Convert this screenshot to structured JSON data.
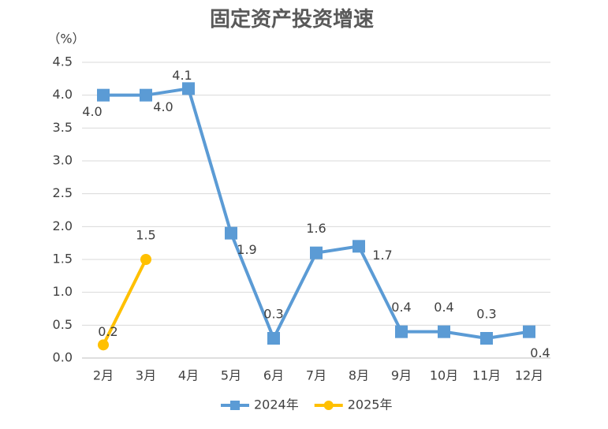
{
  "chart_data": {
    "type": "line",
    "title": "固定资产投资增速",
    "y_label": "（%）",
    "categories": [
      "2月",
      "3月",
      "4月",
      "5月",
      "6月",
      "7月",
      "8月",
      "9月",
      "10月",
      "11月",
      "12月"
    ],
    "series": [
      {
        "name": "2024年",
        "color": "#5b9bd5",
        "marker": "square",
        "values": [
          4.0,
          4.0,
          4.1,
          1.9,
          0.3,
          1.6,
          1.7,
          0.4,
          0.4,
          0.3,
          0.4
        ],
        "value_labels": [
          "4.0",
          "4.0",
          "4.1",
          "1.9",
          "0.3",
          "1.6",
          "1.7",
          "0.4",
          "0.4",
          "0.3",
          "0.4"
        ]
      },
      {
        "name": "2025年",
        "color": "#ffc000",
        "marker": "circle",
        "values": [
          0.2,
          1.5,
          null,
          null,
          null,
          null,
          null,
          null,
          null,
          null,
          null
        ],
        "value_labels": [
          "0.2",
          "1.5",
          null,
          null,
          null,
          null,
          null,
          null,
          null,
          null,
          null
        ]
      }
    ],
    "ylim": [
      0,
      4.5
    ],
    "yticks": [
      {
        "value": 0,
        "label": "0.0"
      },
      {
        "value": 0.5,
        "label": "0.5"
      },
      {
        "value": 1,
        "label": "1.0"
      },
      {
        "value": 1.5,
        "label": "1.5"
      },
      {
        "value": 2,
        "label": "2.0"
      },
      {
        "value": 2.5,
        "label": "2.5"
      },
      {
        "value": 3,
        "label": "3.0"
      },
      {
        "value": 3.5,
        "label": "3.5"
      },
      {
        "value": 4,
        "label": "4.0"
      },
      {
        "value": 4.5,
        "label": "4.5"
      }
    ],
    "grid": true,
    "legend": "bottom"
  }
}
